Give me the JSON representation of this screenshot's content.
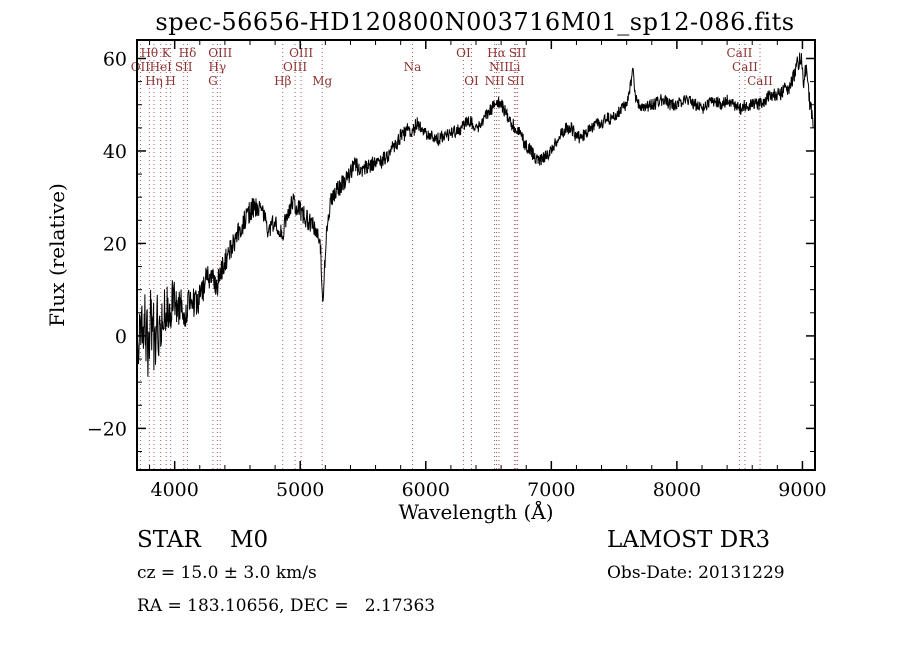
{
  "title": "spec-56656-HD120800N003716M01_sp12-086.fits",
  "annotations": {
    "class_line": "STAR    M0",
    "survey": "LAMOST DR3",
    "cz_line": "cz = 15.0 ± 3.0 km/s",
    "obs_date": "Obs-Date: 20131229",
    "radec_line": "RA = 183.10656, DEC =   2.17363"
  },
  "chart_data": {
    "type": "line",
    "title": "spec-56656-HD120800N003716M01_sp12-086.fits",
    "xlabel": "Wavelength (Å)",
    "ylabel": "Flux (relative)",
    "xlim": [
      3700,
      9100
    ],
    "ylim": [
      -29,
      64
    ],
    "xticks": [
      4000,
      5000,
      6000,
      7000,
      8000,
      9000
    ],
    "yticks": [
      -20,
      0,
      20,
      40,
      60
    ],
    "x_minor_step": 200,
    "y_minor_step": 5,
    "grid": false,
    "legend": "none",
    "line_color": "#000000",
    "marker_line_color": "#b05c5c",
    "marker_label_color": "#8c3434",
    "spectral_lines": [
      {
        "label": "OII",
        "wavelength": 3727,
        "row": 1
      },
      {
        "label": "Hθ",
        "wavelength": 3798,
        "row": 0
      },
      {
        "label": "Hη",
        "wavelength": 3835,
        "row": 2
      },
      {
        "label": "HeI",
        "wavelength": 3889,
        "row": 1
      },
      {
        "label": "K",
        "wavelength": 3933,
        "row": 0
      },
      {
        "label": "H",
        "wavelength": 3968,
        "row": 2
      },
      {
        "label": "SII",
        "wavelength": 4072,
        "row": 1
      },
      {
        "label": "Hδ",
        "wavelength": 4102,
        "row": 0
      },
      {
        "label": "G",
        "wavelength": 4305,
        "row": 2
      },
      {
        "label": "Hγ",
        "wavelength": 4340,
        "row": 1
      },
      {
        "label": "OIII",
        "wavelength": 4363,
        "row": 0
      },
      {
        "label": "Hβ",
        "wavelength": 4861,
        "row": 2
      },
      {
        "label": "OIII",
        "wavelength": 4959,
        "row": 1
      },
      {
        "label": "OIII",
        "wavelength": 5007,
        "row": 0
      },
      {
        "label": "Mg",
        "wavelength": 5175,
        "row": 2
      },
      {
        "label": "Na",
        "wavelength": 5894,
        "row": 1
      },
      {
        "label": "OI",
        "wavelength": 6300,
        "row": 0
      },
      {
        "label": "OI",
        "wavelength": 6364,
        "row": 2
      },
      {
        "label": "NII",
        "wavelength": 6548,
        "row": 2
      },
      {
        "label": "Hα",
        "wavelength": 6563,
        "row": 0
      },
      {
        "label": "NII",
        "wavelength": 6583,
        "row": 1
      },
      {
        "label": "Li",
        "wavelength": 6707,
        "row": 1
      },
      {
        "label": "SII",
        "wavelength": 6717,
        "row": 2
      },
      {
        "label": "SII",
        "wavelength": 6731,
        "row": 0
      },
      {
        "label": "CaII",
        "wavelength": 8498,
        "row": 0
      },
      {
        "label": "CaII",
        "wavelength": 8542,
        "row": 1
      },
      {
        "label": "CaII",
        "wavelength": 8662,
        "row": 2
      }
    ],
    "spectrum_envelope": [
      [
        3700,
        2
      ],
      [
        3712,
        -4
      ],
      [
        3722,
        3
      ],
      [
        3732,
        -2
      ],
      [
        3742,
        4
      ],
      [
        3750,
        0
      ],
      [
        3760,
        6
      ],
      [
        3770,
        -3
      ],
      [
        3780,
        2
      ],
      [
        3790,
        -5
      ],
      [
        3800,
        1
      ],
      [
        3810,
        7
      ],
      [
        3820,
        -2
      ],
      [
        3830,
        3
      ],
      [
        3840,
        -6
      ],
      [
        3850,
        2
      ],
      [
        3860,
        5
      ],
      [
        3870,
        -1
      ],
      [
        3880,
        4
      ],
      [
        3890,
        0
      ],
      [
        3900,
        6
      ],
      [
        3910,
        2
      ],
      [
        3920,
        7
      ],
      [
        3930,
        3
      ],
      [
        3940,
        8
      ],
      [
        3950,
        5
      ],
      [
        3960,
        2
      ],
      [
        3970,
        6
      ],
      [
        3980,
        9
      ],
      [
        4000,
        8
      ],
      [
        4020,
        5
      ],
      [
        4050,
        7
      ],
      [
        4080,
        4
      ],
      [
        4100,
        6
      ],
      [
        4130,
        8
      ],
      [
        4160,
        7
      ],
      [
        4200,
        8
      ],
      [
        4230,
        10
      ],
      [
        4260,
        14
      ],
      [
        4280,
        11
      ],
      [
        4300,
        13
      ],
      [
        4320,
        12
      ],
      [
        4340,
        11
      ],
      [
        4360,
        13
      ],
      [
        4380,
        15
      ],
      [
        4400,
        16
      ],
      [
        4430,
        18
      ],
      [
        4460,
        20
      ],
      [
        4500,
        22
      ],
      [
        4540,
        24
      ],
      [
        4570,
        26
      ],
      [
        4600,
        27
      ],
      [
        4630,
        28
      ],
      [
        4660,
        28
      ],
      [
        4690,
        27
      ],
      [
        4720,
        25
      ],
      [
        4750,
        23
      ],
      [
        4780,
        24
      ],
      [
        4810,
        24
      ],
      [
        4840,
        23
      ],
      [
        4860,
        22
      ],
      [
        4880,
        25
      ],
      [
        4900,
        27
      ],
      [
        4920,
        28
      ],
      [
        4940,
        29
      ],
      [
        4960,
        28
      ],
      [
        4980,
        28
      ],
      [
        5000,
        27
      ],
      [
        5030,
        26
      ],
      [
        5060,
        25
      ],
      [
        5100,
        24
      ],
      [
        5130,
        23
      ],
      [
        5160,
        20
      ],
      [
        5180,
        8
      ],
      [
        5200,
        18
      ],
      [
        5220,
        26
      ],
      [
        5250,
        30
      ],
      [
        5280,
        31
      ],
      [
        5310,
        32
      ],
      [
        5340,
        33
      ],
      [
        5370,
        34
      ],
      [
        5400,
        35
      ],
      [
        5430,
        38
      ],
      [
        5460,
        36
      ],
      [
        5500,
        36
      ],
      [
        5550,
        37
      ],
      [
        5600,
        37
      ],
      [
        5650,
        38
      ],
      [
        5700,
        39
      ],
      [
        5750,
        41
      ],
      [
        5800,
        43
      ],
      [
        5840,
        44
      ],
      [
        5870,
        45
      ],
      [
        5890,
        43
      ],
      [
        5910,
        45
      ],
      [
        5940,
        46
      ],
      [
        5970,
        45
      ],
      [
        6000,
        44
      ],
      [
        6040,
        43
      ],
      [
        6080,
        42
      ],
      [
        6120,
        43
      ],
      [
        6160,
        43
      ],
      [
        6200,
        44
      ],
      [
        6240,
        44
      ],
      [
        6280,
        45
      ],
      [
        6320,
        46
      ],
      [
        6360,
        46
      ],
      [
        6400,
        45
      ],
      [
        6440,
        46
      ],
      [
        6480,
        48
      ],
      [
        6520,
        49
      ],
      [
        6560,
        51
      ],
      [
        6600,
        50
      ],
      [
        6640,
        48
      ],
      [
        6680,
        46
      ],
      [
        6720,
        45
      ],
      [
        6760,
        43
      ],
      [
        6800,
        41
      ],
      [
        6840,
        40
      ],
      [
        6880,
        38
      ],
      [
        6920,
        38
      ],
      [
        6960,
        39
      ],
      [
        7000,
        40
      ],
      [
        7040,
        42
      ],
      [
        7080,
        44
      ],
      [
        7120,
        45
      ],
      [
        7160,
        45
      ],
      [
        7200,
        43
      ],
      [
        7240,
        43
      ],
      [
        7280,
        44
      ],
      [
        7320,
        45
      ],
      [
        7360,
        46
      ],
      [
        7400,
        46
      ],
      [
        7440,
        47
      ],
      [
        7480,
        47
      ],
      [
        7520,
        48
      ],
      [
        7560,
        49
      ],
      [
        7600,
        50
      ],
      [
        7630,
        54
      ],
      [
        7650,
        57
      ],
      [
        7670,
        52
      ],
      [
        7700,
        50
      ],
      [
        7740,
        49
      ],
      [
        7780,
        50
      ],
      [
        7820,
        50
      ],
      [
        7860,
        51
      ],
      [
        7900,
        51
      ],
      [
        7950,
        50
      ],
      [
        8000,
        50
      ],
      [
        8050,
        51
      ],
      [
        8100,
        51
      ],
      [
        8150,
        50
      ],
      [
        8200,
        49
      ],
      [
        8250,
        50
      ],
      [
        8300,
        51
      ],
      [
        8350,
        50
      ],
      [
        8400,
        51
      ],
      [
        8450,
        50
      ],
      [
        8500,
        49
      ],
      [
        8550,
        50
      ],
      [
        8600,
        50
      ],
      [
        8650,
        50
      ],
      [
        8700,
        51
      ],
      [
        8750,
        52
      ],
      [
        8800,
        52
      ],
      [
        8850,
        53
      ],
      [
        8900,
        54
      ],
      [
        8930,
        56
      ],
      [
        8960,
        59
      ],
      [
        8990,
        60
      ],
      [
        9010,
        55
      ],
      [
        9030,
        58
      ],
      [
        9060,
        50
      ],
      [
        9090,
        46
      ]
    ],
    "noise_profile": [
      [
        3700,
        6
      ],
      [
        3850,
        6
      ],
      [
        3950,
        4.5
      ],
      [
        4050,
        3.5
      ],
      [
        4200,
        3
      ],
      [
        4400,
        2.6
      ],
      [
        4700,
        2.3
      ],
      [
        5000,
        2.1
      ],
      [
        5300,
        2
      ],
      [
        5600,
        1.8
      ],
      [
        6000,
        1.6
      ],
      [
        6500,
        1.5
      ],
      [
        7000,
        1.4
      ],
      [
        7600,
        1.3
      ],
      [
        8200,
        1.3
      ],
      [
        8700,
        1.4
      ],
      [
        9100,
        1.9
      ]
    ],
    "noise_seed": 56656
  }
}
